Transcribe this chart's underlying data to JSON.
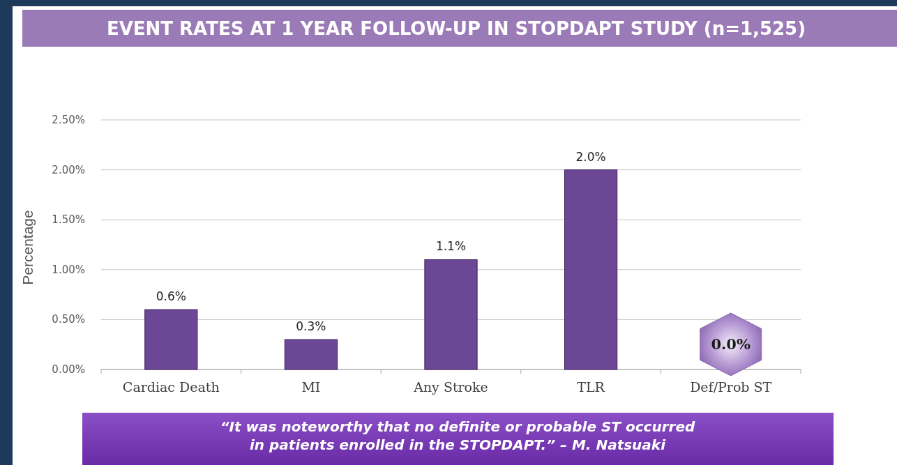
{
  "chart_data": {
    "type": "bar",
    "title": "EVENT RATES AT 1 YEAR FOLLOW-UP IN STOPDAPT STUDY (n=1,525)",
    "ylabel": "Percentage",
    "categories": [
      "Cardiac Death",
      "MI",
      "Any Stroke",
      "TLR",
      "Def/Prob ST"
    ],
    "values": [
      0.6,
      0.3,
      1.1,
      2.0,
      0.0
    ],
    "value_labels": [
      "0.6%",
      "0.3%",
      "1.1%",
      "2.0%",
      "0.0%"
    ],
    "color": "#6b4795",
    "ylim": [
      0,
      2.5
    ],
    "yticks": [
      {
        "value": 0,
        "label": "0.00%"
      },
      {
        "value": 0.5,
        "label": "0.50%"
      },
      {
        "value": 1,
        "label": "1.00%"
      },
      {
        "value": 1.5,
        "label": "1.50%"
      },
      {
        "value": 2,
        "label": "2.00%"
      },
      {
        "value": 2.5,
        "label": "2.50%"
      }
    ],
    "grid": "y",
    "annotations": [
      "“It was noteworthy that no definite or probable ST occurred in patients enrolled in the STOPDAPT.” – M. Natsuaki"
    ]
  }
}
